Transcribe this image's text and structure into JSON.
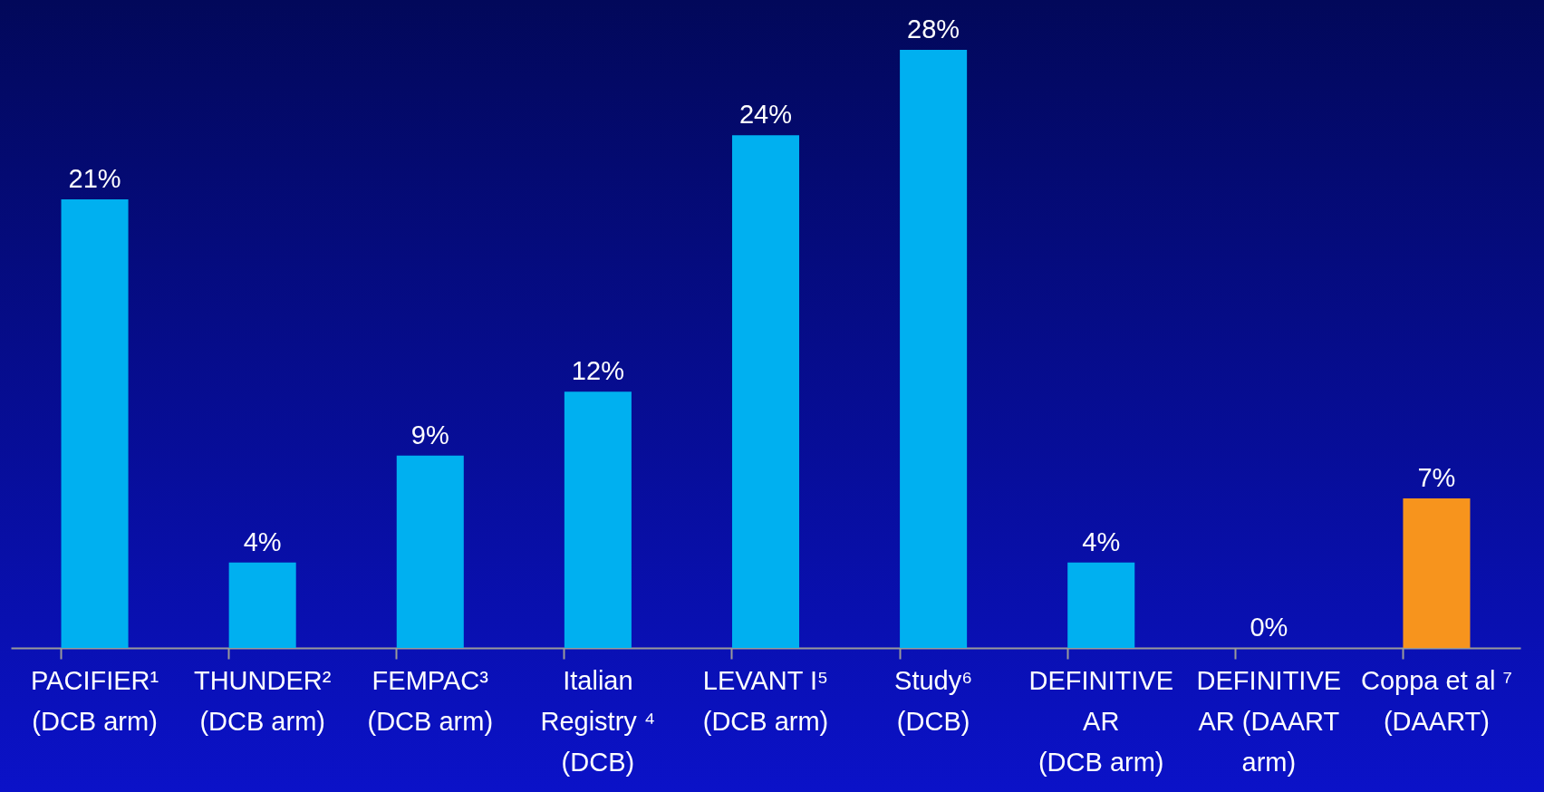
{
  "chart_data": {
    "type": "bar",
    "categories": [
      "PACIFIER¹\n(DCB arm)",
      "THUNDER²\n(DCB arm)",
      "FEMPAC³\n(DCB arm)",
      "Italian\nRegistry ⁴\n(DCB)",
      "LEVANT I⁵\n(DCB arm)",
      "Study⁶\n(DCB)",
      "DEFINITIVE\nAR\n(DCB arm)",
      "DEFINITIVE\nAR (DAART\narm)",
      "Coppa et al ⁷\n(DAART)"
    ],
    "values": [
      21,
      4,
      9,
      12,
      24,
      28,
      4,
      0,
      7
    ],
    "colors": [
      "#00b0f0",
      "#00b0f0",
      "#00b0f0",
      "#00b0f0",
      "#00b0f0",
      "#00b0f0",
      "#00b0f0",
      "#00b0f0",
      "#f7941d"
    ],
    "value_labels": [
      "21%",
      "4%",
      "9%",
      "12%",
      "24%",
      "28%",
      "4%",
      "0%",
      "7%"
    ]
  }
}
